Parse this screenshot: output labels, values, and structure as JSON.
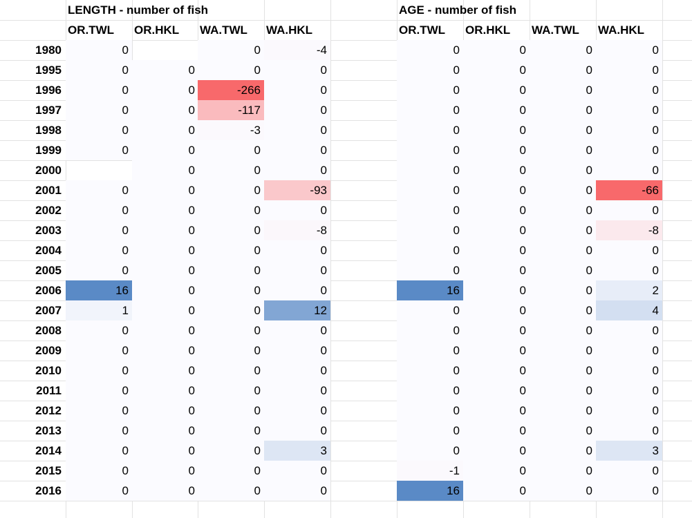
{
  "tables": [
    {
      "title": "LENGTH - number of fish",
      "columns": [
        "OR.TWL",
        "OR.HKL",
        "WA.TWL",
        "WA.HKL"
      ],
      "rows": [
        {
          "year": "1980",
          "values": [
            "0",
            "",
            "0",
            "-4"
          ]
        },
        {
          "year": "1995",
          "values": [
            "0",
            "0",
            "0",
            "0"
          ]
        },
        {
          "year": "1996",
          "values": [
            "0",
            "0",
            "-266",
            "0"
          ]
        },
        {
          "year": "1997",
          "values": [
            "0",
            "0",
            "-117",
            "0"
          ]
        },
        {
          "year": "1998",
          "values": [
            "0",
            "0",
            "-3",
            "0"
          ]
        },
        {
          "year": "1999",
          "values": [
            "0",
            "0",
            "0",
            "0"
          ]
        },
        {
          "year": "2000",
          "values": [
            "",
            "0",
            "0",
            "0"
          ]
        },
        {
          "year": "2001",
          "values": [
            "0",
            "0",
            "0",
            "-93"
          ]
        },
        {
          "year": "2002",
          "values": [
            "0",
            "0",
            "0",
            "0"
          ]
        },
        {
          "year": "2003",
          "values": [
            "0",
            "0",
            "0",
            "-8"
          ]
        },
        {
          "year": "2004",
          "values": [
            "0",
            "0",
            "0",
            "0"
          ]
        },
        {
          "year": "2005",
          "values": [
            "0",
            "0",
            "0",
            "0"
          ]
        },
        {
          "year": "2006",
          "values": [
            "16",
            "0",
            "0",
            "0"
          ]
        },
        {
          "year": "2007",
          "values": [
            "1",
            "0",
            "0",
            "12"
          ]
        },
        {
          "year": "2008",
          "values": [
            "0",
            "0",
            "0",
            "0"
          ]
        },
        {
          "year": "2009",
          "values": [
            "0",
            "0",
            "0",
            "0"
          ]
        },
        {
          "year": "2010",
          "values": [
            "0",
            "0",
            "0",
            "0"
          ]
        },
        {
          "year": "2011",
          "values": [
            "0",
            "0",
            "0",
            "0"
          ]
        },
        {
          "year": "2012",
          "values": [
            "0",
            "0",
            "0",
            "0"
          ]
        },
        {
          "year": "2013",
          "values": [
            "0",
            "0",
            "0",
            "0"
          ]
        },
        {
          "year": "2014",
          "values": [
            "0",
            "0",
            "0",
            "3"
          ]
        },
        {
          "year": "2015",
          "values": [
            "0",
            "0",
            "0",
            "0"
          ]
        },
        {
          "year": "2016",
          "values": [
            "0",
            "0",
            "0",
            "0"
          ]
        }
      ]
    },
    {
      "title": "AGE - number of fish",
      "columns": [
        "OR.TWL",
        "OR.HKL",
        "WA.TWL",
        "WA.HKL"
      ],
      "rows": [
        {
          "year": "1980",
          "values": [
            "0",
            "0",
            "0",
            "0"
          ]
        },
        {
          "year": "1995",
          "values": [
            "0",
            "0",
            "0",
            "0"
          ]
        },
        {
          "year": "1996",
          "values": [
            "0",
            "0",
            "0",
            "0"
          ]
        },
        {
          "year": "1997",
          "values": [
            "0",
            "0",
            "0",
            "0"
          ]
        },
        {
          "year": "1998",
          "values": [
            "0",
            "0",
            "0",
            "0"
          ]
        },
        {
          "year": "1999",
          "values": [
            "0",
            "0",
            "0",
            "0"
          ]
        },
        {
          "year": "2000",
          "values": [
            "0",
            "0",
            "0",
            "0"
          ]
        },
        {
          "year": "2001",
          "values": [
            "0",
            "0",
            "0",
            "-66"
          ]
        },
        {
          "year": "2002",
          "values": [
            "0",
            "0",
            "0",
            "0"
          ]
        },
        {
          "year": "2003",
          "values": [
            "0",
            "0",
            "0",
            "-8"
          ]
        },
        {
          "year": "2004",
          "values": [
            "0",
            "0",
            "0",
            "0"
          ]
        },
        {
          "year": "2005",
          "values": [
            "0",
            "0",
            "0",
            "0"
          ]
        },
        {
          "year": "2006",
          "values": [
            "16",
            "0",
            "0",
            "2"
          ]
        },
        {
          "year": "2007",
          "values": [
            "0",
            "0",
            "0",
            "4"
          ]
        },
        {
          "year": "2008",
          "values": [
            "0",
            "0",
            "0",
            "0"
          ]
        },
        {
          "year": "2009",
          "values": [
            "0",
            "0",
            "0",
            "0"
          ]
        },
        {
          "year": "2010",
          "values": [
            "0",
            "0",
            "0",
            "0"
          ]
        },
        {
          "year": "2011",
          "values": [
            "0",
            "0",
            "0",
            "0"
          ]
        },
        {
          "year": "2012",
          "values": [
            "0",
            "0",
            "0",
            "0"
          ]
        },
        {
          "year": "2013",
          "values": [
            "0",
            "0",
            "0",
            "0"
          ]
        },
        {
          "year": "2014",
          "values": [
            "0",
            "0",
            "0",
            "3"
          ]
        },
        {
          "year": "2015",
          "values": [
            "-1",
            "0",
            "0",
            "0"
          ]
        },
        {
          "year": "2016",
          "values": [
            "16",
            "0",
            "0",
            "0"
          ]
        }
      ]
    }
  ],
  "colors": {
    "neutral": "#fbfbff",
    "negative_max": "#f8696b",
    "positive_max": "#5a8ac6",
    "gridline": "#e2e2e2"
  }
}
